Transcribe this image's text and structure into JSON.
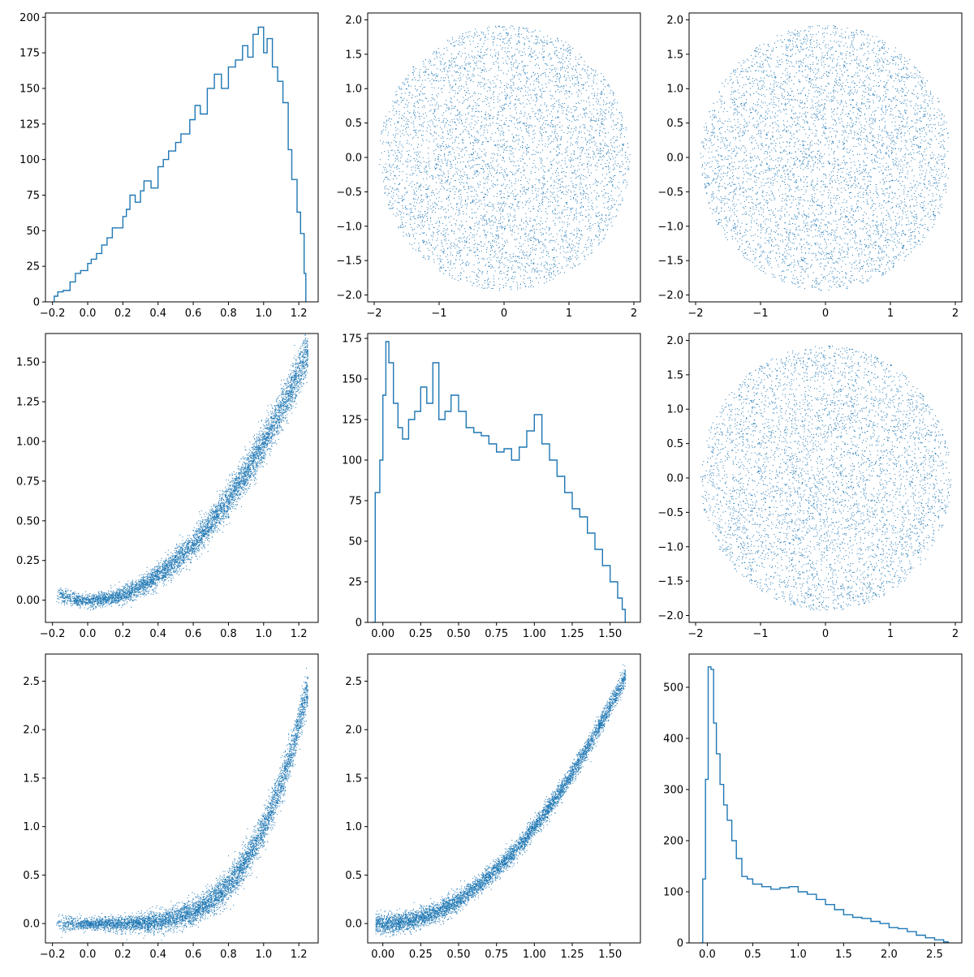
{
  "chart_data": [
    {
      "id": "p00",
      "type": "histogram",
      "row": 0,
      "col": 0,
      "xlim": [
        -0.24,
        1.31
      ],
      "ylim": [
        0,
        203
      ],
      "xticks": [
        -0.2,
        0.0,
        0.2,
        0.4,
        0.6,
        0.8,
        1.0,
        1.2
      ],
      "yticks": [
        0,
        25,
        50,
        75,
        100,
        125,
        150,
        175,
        200
      ],
      "x": [
        -0.19,
        -0.17,
        -0.14,
        -0.1,
        -0.07,
        -0.04,
        0.0,
        0.02,
        0.05,
        0.08,
        0.11,
        0.14,
        0.2,
        0.22,
        0.24,
        0.27,
        0.3,
        0.32,
        0.36,
        0.4,
        0.43,
        0.46,
        0.5,
        0.53,
        0.58,
        0.61,
        0.64,
        0.68,
        0.72,
        0.76,
        0.8,
        0.84,
        0.88,
        0.91,
        0.94,
        0.97,
        1.0,
        1.02,
        1.05,
        1.08,
        1.11,
        1.14,
        1.16,
        1.19,
        1.21,
        1.23,
        1.24
      ],
      "y": [
        4,
        7,
        8,
        14,
        20,
        22,
        27,
        30,
        34,
        40,
        45,
        52,
        60,
        65,
        75,
        70,
        78,
        85,
        80,
        95,
        100,
        106,
        112,
        118,
        128,
        138,
        132,
        150,
        160,
        150,
        165,
        170,
        180,
        172,
        188,
        193,
        175,
        185,
        165,
        155,
        140,
        107,
        86,
        63,
        48,
        20,
        0
      ]
    },
    {
      "id": "p01",
      "type": "scatter",
      "row": 0,
      "col": 1,
      "shape": "disc",
      "radius": 1.93,
      "xlim": [
        -2.1,
        2.1
      ],
      "ylim": [
        -2.1,
        2.1
      ],
      "xticks": [
        -2,
        -1,
        0,
        1,
        2
      ],
      "yticks": [
        -2.0,
        -1.5,
        -1.0,
        -0.5,
        0.0,
        0.5,
        1.0,
        1.5,
        2.0
      ]
    },
    {
      "id": "p02",
      "type": "scatter",
      "row": 0,
      "col": 2,
      "shape": "disc",
      "radius": 1.93,
      "xlim": [
        -2.1,
        2.1
      ],
      "ylim": [
        -2.1,
        2.1
      ],
      "xticks": [
        -2,
        -1,
        0,
        1,
        2
      ],
      "yticks": [
        -2.0,
        -1.5,
        -1.0,
        -0.5,
        0.0,
        0.5,
        1.0,
        1.5,
        2.0
      ]
    },
    {
      "id": "p10",
      "type": "scatter",
      "row": 1,
      "col": 0,
      "shape": "parabola",
      "power": 2,
      "xlim": [
        -0.24,
        1.31
      ],
      "ylim": [
        -0.14,
        1.68
      ],
      "xticks": [
        -0.2,
        0.0,
        0.2,
        0.4,
        0.6,
        0.8,
        1.0,
        1.2
      ],
      "yticks": [
        0.0,
        0.25,
        0.5,
        0.75,
        1.0,
        1.25,
        1.5
      ]
    },
    {
      "id": "p11",
      "type": "histogram",
      "row": 1,
      "col": 1,
      "xlim": [
        -0.1,
        1.7
      ],
      "ylim": [
        0,
        178
      ],
      "xticks": [
        0.0,
        0.25,
        0.5,
        0.75,
        1.0,
        1.25,
        1.5
      ],
      "yticks": [
        0,
        25,
        50,
        75,
        100,
        125,
        150,
        175
      ],
      "x": [
        -0.07,
        -0.05,
        -0.02,
        0.0,
        0.02,
        0.04,
        0.07,
        0.1,
        0.13,
        0.17,
        0.21,
        0.25,
        0.29,
        0.33,
        0.37,
        0.41,
        0.45,
        0.5,
        0.55,
        0.6,
        0.65,
        0.7,
        0.75,
        0.8,
        0.85,
        0.9,
        0.95,
        1.0,
        1.05,
        1.1,
        1.15,
        1.2,
        1.25,
        1.3,
        1.35,
        1.4,
        1.45,
        1.5,
        1.55,
        1.58,
        1.6
      ],
      "y": [
        0,
        80,
        100,
        140,
        173,
        160,
        135,
        120,
        113,
        125,
        130,
        145,
        135,
        160,
        125,
        130,
        140,
        130,
        120,
        117,
        115,
        110,
        105,
        107,
        100,
        108,
        118,
        128,
        110,
        100,
        90,
        80,
        70,
        65,
        55,
        45,
        35,
        25,
        15,
        8,
        0
      ]
    },
    {
      "id": "p12",
      "type": "scatter",
      "row": 1,
      "col": 2,
      "shape": "disc",
      "radius": 1.93,
      "xlim": [
        -2.1,
        2.1
      ],
      "ylim": [
        -2.1,
        2.1
      ],
      "xticks": [
        -2,
        -1,
        0,
        1,
        2
      ],
      "yticks": [
        -2.0,
        -1.5,
        -1.0,
        -0.5,
        0.0,
        0.5,
        1.0,
        1.5,
        2.0
      ]
    },
    {
      "id": "p20",
      "type": "scatter",
      "row": 2,
      "col": 0,
      "shape": "parabola",
      "power": 4,
      "xlim": [
        -0.24,
        1.31
      ],
      "ylim": [
        -0.2,
        2.78
      ],
      "xticks": [
        -0.2,
        0.0,
        0.2,
        0.4,
        0.6,
        0.8,
        1.0,
        1.2
      ],
      "yticks": [
        0.0,
        0.5,
        1.0,
        1.5,
        2.0,
        2.5
      ]
    },
    {
      "id": "p21",
      "type": "scatter",
      "row": 2,
      "col": 1,
      "shape": "parabola",
      "power": 2,
      "xlim": [
        -0.1,
        1.7
      ],
      "ylim": [
        -0.2,
        2.78
      ],
      "xticks": [
        0.0,
        0.25,
        0.5,
        0.75,
        1.0,
        1.25,
        1.5
      ],
      "yticks": [
        0.0,
        0.5,
        1.0,
        1.5,
        2.0,
        2.5
      ]
    },
    {
      "id": "p22",
      "type": "histogram",
      "row": 2,
      "col": 2,
      "xlim": [
        -0.2,
        2.8
      ],
      "ylim": [
        0,
        565
      ],
      "xticks": [
        0.0,
        0.5,
        1.0,
        1.5,
        2.0,
        2.5
      ],
      "yticks": [
        0,
        100,
        200,
        300,
        400,
        500
      ],
      "x": [
        -0.07,
        -0.05,
        -0.02,
        0.01,
        0.04,
        0.07,
        0.1,
        0.14,
        0.18,
        0.22,
        0.27,
        0.32,
        0.38,
        0.44,
        0.5,
        0.6,
        0.7,
        0.8,
        0.9,
        1.0,
        1.1,
        1.2,
        1.3,
        1.4,
        1.5,
        1.6,
        1.7,
        1.8,
        1.9,
        2.0,
        2.1,
        2.2,
        2.3,
        2.4,
        2.5,
        2.6,
        2.65
      ],
      "y": [
        0,
        125,
        320,
        540,
        535,
        430,
        370,
        310,
        270,
        240,
        200,
        165,
        130,
        125,
        115,
        110,
        105,
        108,
        110,
        100,
        95,
        85,
        75,
        65,
        55,
        50,
        48,
        42,
        38,
        30,
        28,
        22,
        15,
        10,
        6,
        2,
        0
      ]
    }
  ]
}
